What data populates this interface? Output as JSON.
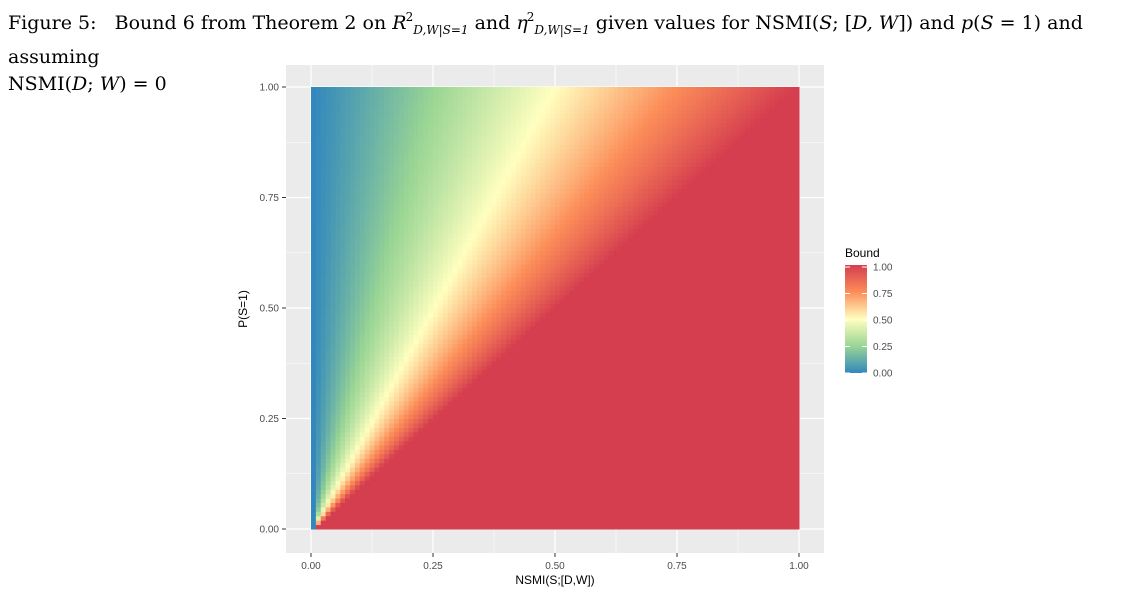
{
  "caption": {
    "label": "Figure 5:",
    "t1": "Bound 6 from Theorem 2 on",
    "r": "R",
    "sub1": "D,W|S=1",
    "sup1": "2",
    "and1": "and",
    "eta": "η",
    "sub2": "D,W|S=1",
    "sup2": "2",
    "t2": "given values for NSMI(",
    "t3": "S",
    "t4": "; [",
    "t5": "D, W",
    "t6": "]) and",
    "t7": "p",
    "t8": "(",
    "t9": "S",
    "t10": " = 1) and assuming",
    "t11": "NSMI(",
    "t12": "D",
    "t13": "; ",
    "t14": "W",
    "t15": ") = 0"
  },
  "chart_data": {
    "type": "heatmap",
    "title": "",
    "xlabel": "NSMI(S;[D,W])",
    "ylabel": "P(S=1)",
    "x_ticks": [
      "0.00",
      "0.25",
      "0.50",
      "0.75",
      "1.00"
    ],
    "y_ticks": [
      "0.00",
      "0.25",
      "0.50",
      "0.75",
      "1.00"
    ],
    "xlim": [
      0,
      1
    ],
    "ylim": [
      0,
      1
    ],
    "grid": true,
    "legend": {
      "title": "Bound",
      "placement": "right",
      "labels": [
        "1.00",
        "0.75",
        "0.50",
        "0.25",
        "0.00"
      ],
      "colors": [
        "#3288bd",
        "#99d594",
        "#ffffbf",
        "#fc8d59",
        "#d53e4f"
      ]
    },
    "value_rule": "bound = min(1, NSMI / P(S=1)); 0 when NSMI = 0",
    "grid_resolution": 100
  }
}
